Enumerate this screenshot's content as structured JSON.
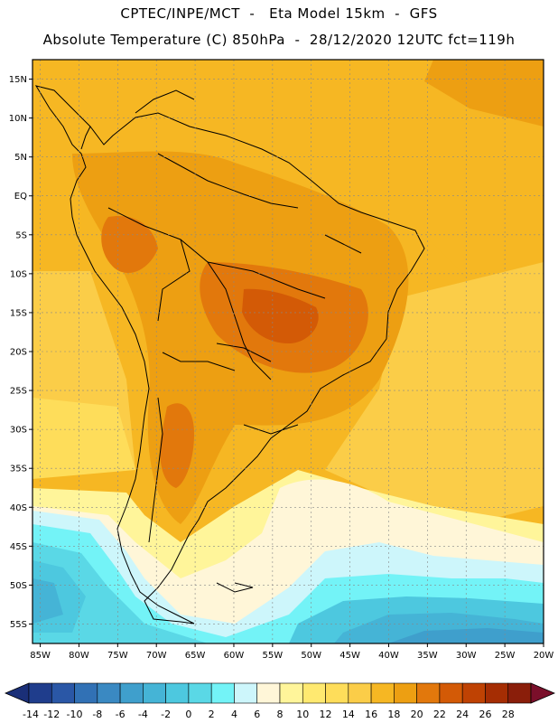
{
  "title": {
    "line1": "CPTEC/INPE/MCT  -   Eta Model 15km  -  GFS",
    "line2": "Absolute Temperature (C) 850hPa  -  28/12/2020 12UTC fct=119h"
  },
  "axes": {
    "lat_labels": [
      "15N",
      "10N",
      "5N",
      "EQ",
      "5S",
      "10S",
      "15S",
      "20S",
      "25S",
      "30S",
      "35S",
      "40S",
      "45S",
      "50S",
      "55S"
    ],
    "lon_labels": [
      "85W",
      "80W",
      "75W",
      "70W",
      "65W",
      "60W",
      "55W",
      "50W",
      "45W",
      "40W",
      "35W",
      "30W",
      "25W",
      "20W"
    ]
  },
  "colorbar": {
    "labels": [
      "-14",
      "-12",
      "-10",
      "-8",
      "-6",
      "-4",
      "-2",
      "0",
      "2",
      "4",
      "6",
      "8",
      "10",
      "12",
      "14",
      "16",
      "18",
      "20",
      "22",
      "24",
      "26",
      "28"
    ],
    "colors": [
      "#1f3d8c",
      "#2a57a6",
      "#3171b5",
      "#3a89c2",
      "#3f9fcc",
      "#45b4d6",
      "#4dc8df",
      "#5ad8e6",
      "#73f3f7",
      "#cdf6fb",
      "#fff6d8",
      "#fff59a",
      "#ffe970",
      "#fedd5a",
      "#fbcd48",
      "#f6b723",
      "#ed9f12",
      "#e2780c",
      "#d35a06",
      "#bf4203",
      "#a52d03",
      "#8a1e0a"
    ],
    "under_color": "#1a2f78",
    "over_color": "#7a0f2a"
  }
}
